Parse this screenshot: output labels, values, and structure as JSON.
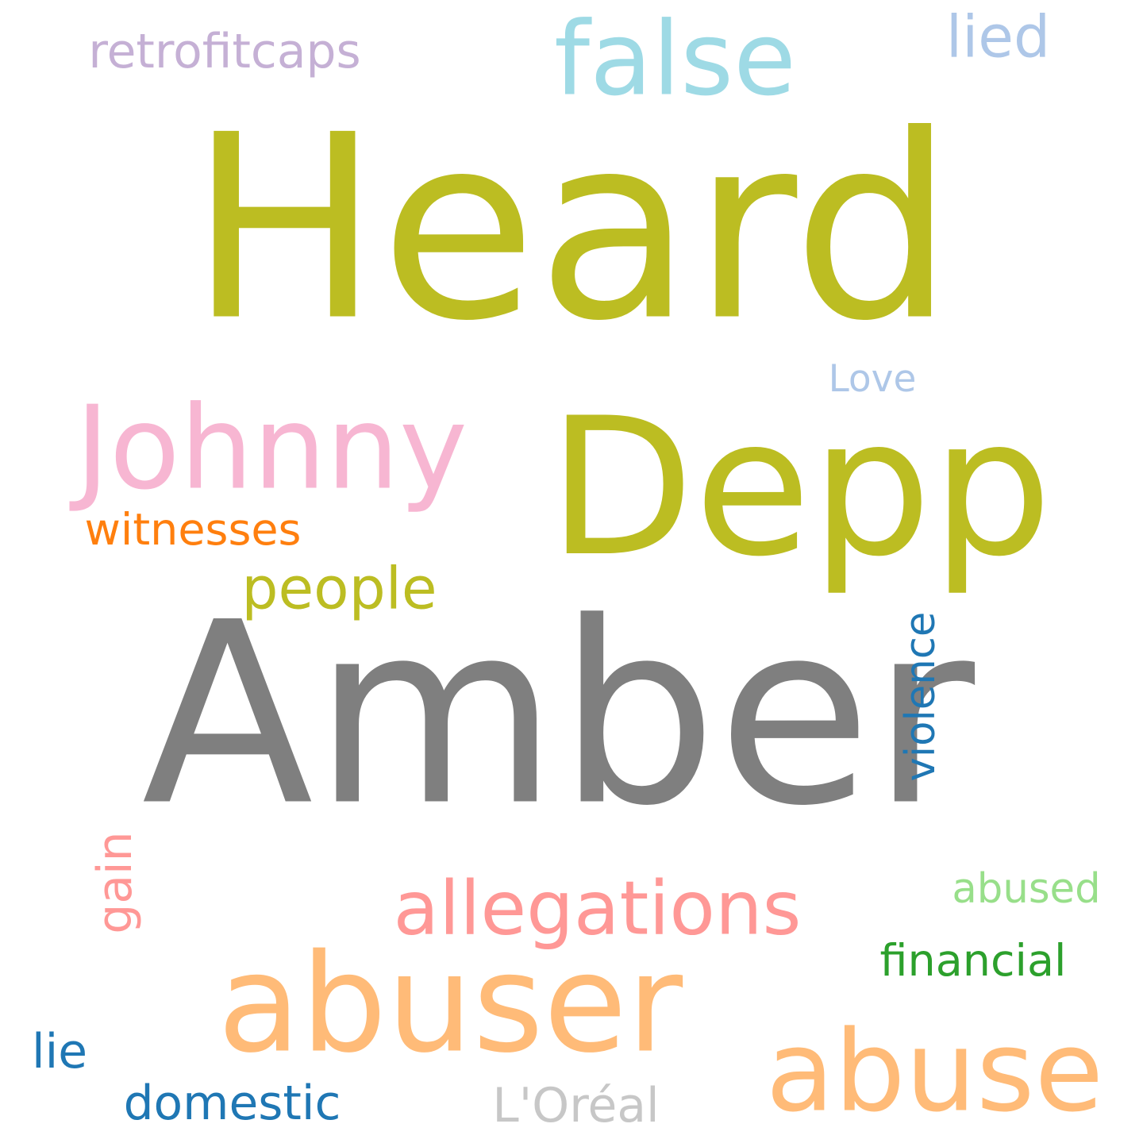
{
  "words": [
    {
      "text": "Heard",
      "color": "#bcbd22"
    },
    {
      "text": "Amber",
      "color": "#7f7f7f"
    },
    {
      "text": "Depp",
      "color": "#bcbd22"
    },
    {
      "text": "Johnny",
      "color": "#f7b6d2"
    },
    {
      "text": "false",
      "color": "#9edae5"
    },
    {
      "text": "abuser",
      "color": "#ffbb78"
    },
    {
      "text": "abuse",
      "color": "#ffbb78"
    },
    {
      "text": "allegations",
      "color": "#ff9896"
    },
    {
      "text": "retrofitcaps",
      "color": "#c5b0d5"
    },
    {
      "text": "lied",
      "color": "#aec7e8"
    },
    {
      "text": "Love",
      "color": "#aec7e8"
    },
    {
      "text": "witnesses",
      "color": "#ff7f0e"
    },
    {
      "text": "people",
      "color": "#bcbd22"
    },
    {
      "text": "violence",
      "color": "#1f77b4"
    },
    {
      "text": "abused",
      "color": "#98df8a"
    },
    {
      "text": "financial",
      "color": "#2ca02c"
    },
    {
      "text": "gain",
      "color": "#ff9896"
    },
    {
      "text": "lie",
      "color": "#1f77b4"
    },
    {
      "text": "domestic",
      "color": "#1f77b4"
    },
    {
      "text": "L'Oréal",
      "color": "#c7c7c7"
    }
  ]
}
